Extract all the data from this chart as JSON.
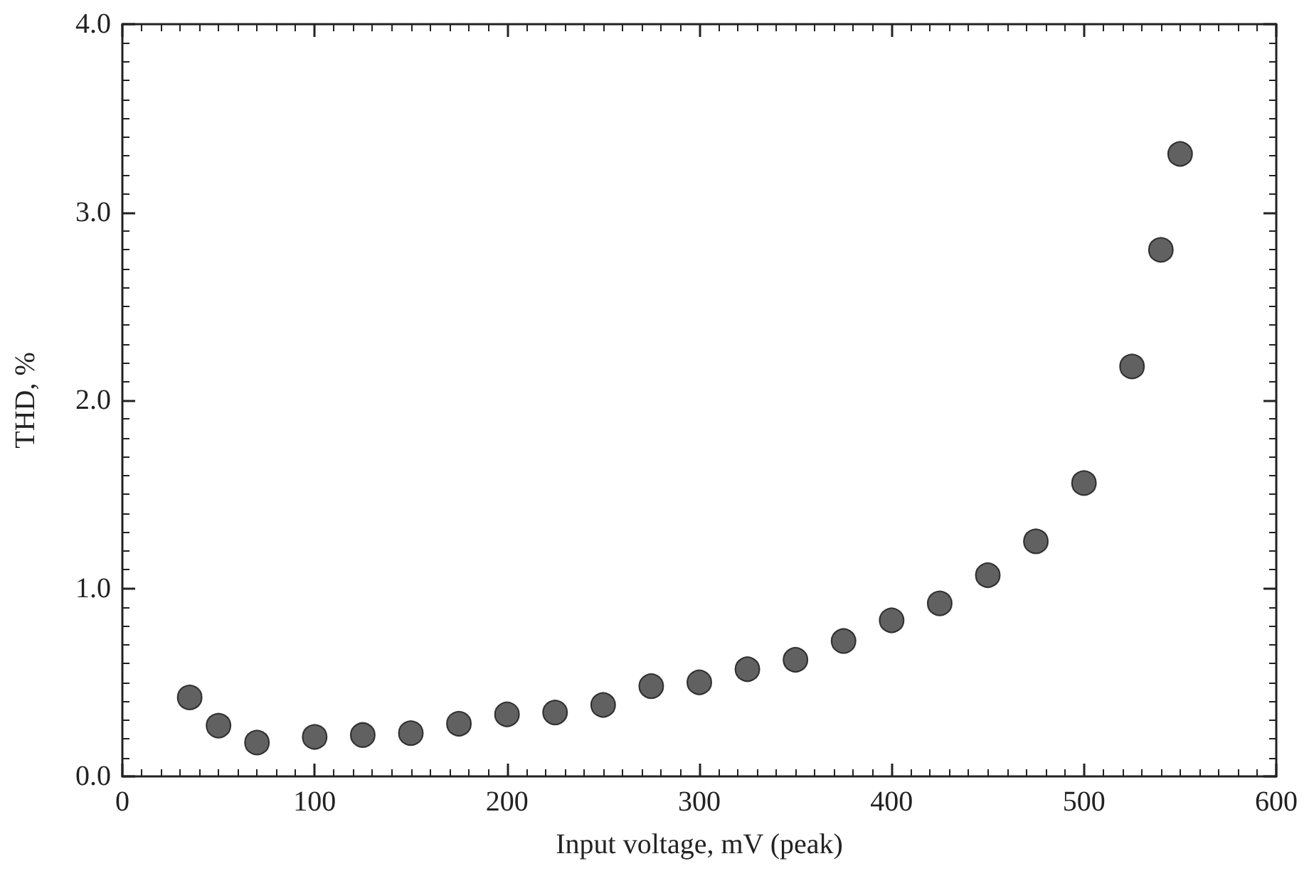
{
  "chart_data": {
    "type": "scatter",
    "xlabel": "Input voltage, mV (peak)",
    "ylabel": "THD, %",
    "x": [
      35,
      50,
      70,
      100,
      125,
      150,
      175,
      200,
      225,
      250,
      275,
      300,
      325,
      350,
      375,
      400,
      425,
      450,
      475,
      500,
      525,
      540,
      550
    ],
    "series": [
      {
        "color": "#3a3a3a",
        "values": [
          0.42,
          0.27,
          0.18,
          0.21,
          0.22,
          0.23,
          0.28,
          0.33,
          0.34,
          0.38,
          0.48,
          0.5,
          0.57,
          0.62,
          0.72,
          0.83,
          0.92,
          1.07,
          1.25,
          1.56,
          2.18,
          2.8,
          3.31
        ]
      }
    ],
    "xlim": [
      0,
      600
    ],
    "xticks": [
      0,
      100,
      200,
      300,
      400,
      500,
      600
    ],
    "ylim": [
      0,
      4
    ],
    "yticks": [
      {
        "value": 0,
        "label": "0.0"
      },
      {
        "value": 1,
        "label": "1.0"
      },
      {
        "value": 2,
        "label": "2.0"
      },
      {
        "value": 3,
        "label": "3.0"
      },
      {
        "value": 4,
        "label": "4.0"
      }
    ],
    "marker": "circle"
  }
}
